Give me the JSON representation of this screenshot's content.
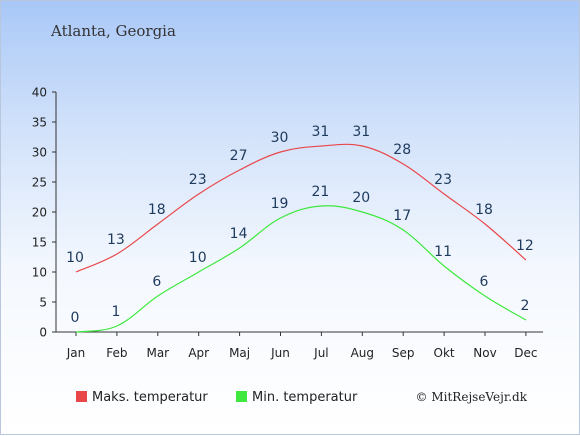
{
  "header": {
    "title": "Atlanta, Georgia"
  },
  "chart_data": {
    "type": "line",
    "categories": [
      "Jan",
      "Feb",
      "Mar",
      "Apr",
      "Maj",
      "Jun",
      "Jul",
      "Aug",
      "Sep",
      "Okt",
      "Nov",
      "Dec"
    ],
    "ylim": [
      0,
      40
    ],
    "yticks": [
      0,
      5,
      10,
      15,
      20,
      25,
      30,
      35,
      40
    ],
    "grid": false,
    "legend_position": "bottom",
    "series": [
      {
        "name": "Maks. temperatur",
        "color": "#e8474a",
        "values": [
          10,
          13,
          18,
          23,
          27,
          30,
          31,
          31,
          28,
          23,
          18,
          12
        ]
      },
      {
        "name": "Min. temperatur",
        "color": "#3ee83e",
        "values": [
          0,
          1,
          6,
          10,
          14,
          19,
          21,
          20,
          17,
          11,
          6,
          2
        ]
      }
    ]
  },
  "footer": {
    "credit": "© MitRejseVejr.dk"
  }
}
